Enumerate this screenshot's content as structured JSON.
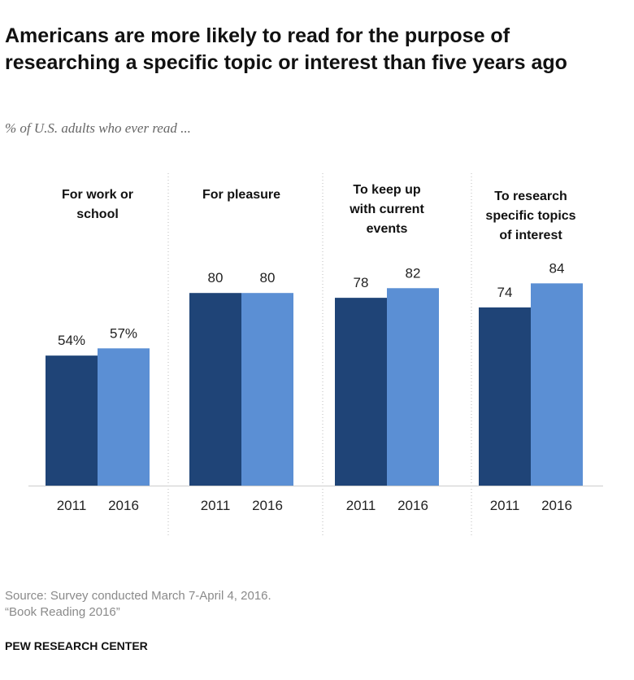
{
  "header": {
    "title": "Americans are more likely to read for the purpose of researching a specific topic or interest than five years ago",
    "subtitle": "% of U.S. adults who ever read ..."
  },
  "chart_data": {
    "type": "bar",
    "title": "Americans are more likely to read for the purpose of researching a specific topic or interest than five years ago",
    "xlabel": "",
    "ylabel": "% of U.S. adults who ever read ...",
    "ylim": [
      0,
      100
    ],
    "grid": false,
    "categories": [
      {
        "label": [
          "For work or",
          "school"
        ],
        "years": [
          "2011",
          "2016"
        ],
        "values": [
          54,
          57
        ],
        "value_labels": [
          "54%",
          "57%"
        ]
      },
      {
        "label": [
          "For pleasure"
        ],
        "years": [
          "2011",
          "2016"
        ],
        "values": [
          80,
          80
        ],
        "value_labels": [
          "80",
          "80"
        ]
      },
      {
        "label": [
          "To keep up",
          "with current",
          "events"
        ],
        "years": [
          "2011",
          "2016"
        ],
        "values": [
          78,
          82
        ],
        "value_labels": [
          "78",
          "82"
        ]
      },
      {
        "label": [
          "To research",
          "specific topics",
          "of interest"
        ],
        "years": [
          "2011",
          "2016"
        ],
        "values": [
          74,
          84
        ],
        "value_labels": [
          "74",
          "84"
        ]
      }
    ],
    "series": [
      {
        "name": "2011",
        "color": "#1f4477"
      },
      {
        "name": "2016",
        "color": "#5b8fd4"
      }
    ]
  },
  "footer": {
    "source": "Source: Survey conducted March 7-April 4, 2016.",
    "report": "“Book Reading 2016”",
    "brand": "PEW RESEARCH CENTER"
  }
}
